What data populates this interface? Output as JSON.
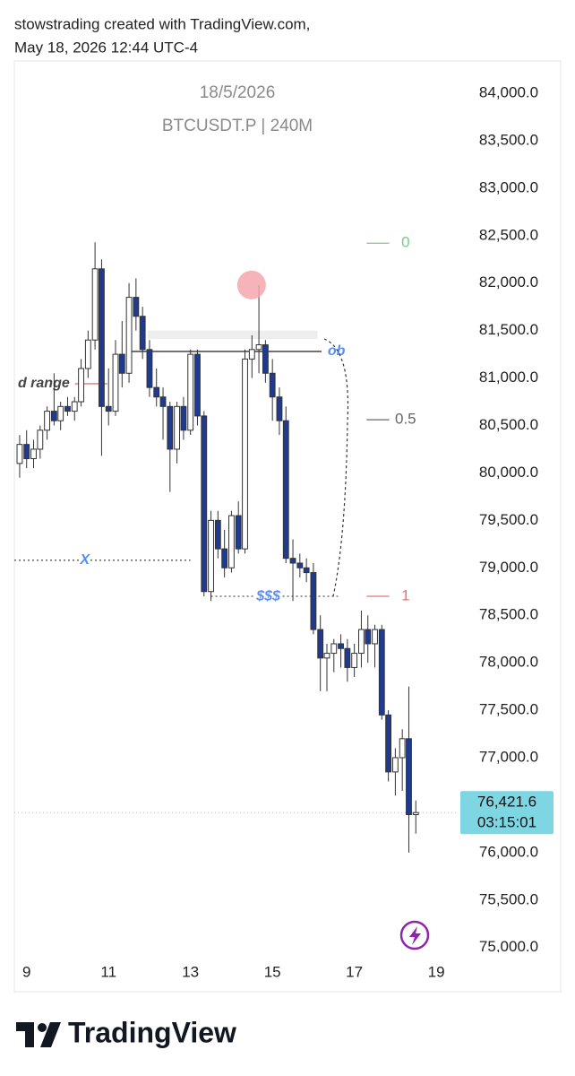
{
  "header": {
    "line1": "stowstrading created with TradingView.com,",
    "line2": "May 18, 2026 12:44 UTC-4"
  },
  "footer": {
    "brand": "TradingView"
  },
  "chart_data": {
    "type": "candlestick",
    "title": "18/5/2026",
    "subtitle": "BTCUSDT.P | 240M",
    "x": [
      8.83,
      9.0,
      9.17,
      9.33,
      9.5,
      9.67,
      9.83,
      10.0,
      10.17,
      10.33,
      10.5,
      10.67,
      10.83,
      11.0,
      11.17,
      11.33,
      11.5,
      11.67,
      11.83,
      12.0,
      12.17,
      12.33,
      12.5,
      12.67,
      12.83,
      13.0,
      13.17,
      13.33,
      13.5,
      13.67,
      13.83,
      14.0,
      14.17,
      14.33,
      14.5,
      14.67,
      14.83,
      15.0,
      15.17,
      15.33,
      15.5,
      15.67,
      15.83,
      16.0,
      16.17,
      16.33,
      16.5,
      16.67,
      16.83,
      17.0,
      17.17,
      17.33,
      17.5,
      17.67,
      17.83,
      18.0,
      18.17,
      18.33,
      18.5
    ],
    "open": [
      80100,
      80300,
      80150,
      80250,
      80450,
      80650,
      80550,
      80700,
      80650,
      80750,
      81100,
      81400,
      82150,
      80700,
      80650,
      81250,
      81050,
      81850,
      81650,
      81300,
      80900,
      80800,
      80700,
      80250,
      80700,
      80450,
      81250,
      80600,
      78750,
      79500,
      79200,
      79000,
      79550,
      79200,
      81200,
      81300,
      81350,
      81050,
      80800,
      80550,
      79100,
      79050,
      79000,
      78950,
      78350,
      78050,
      78100,
      78200,
      78150,
      77950,
      78100,
      78350,
      78200,
      78350,
      77450,
      76850,
      77000,
      77200,
      76400
    ],
    "high": [
      80400,
      80450,
      80350,
      80500,
      80700,
      81050,
      80750,
      80800,
      80800,
      81200,
      81500,
      82430,
      82250,
      81100,
      81400,
      81600,
      82000,
      82050,
      81750,
      81400,
      81100,
      80900,
      80750,
      80750,
      80800,
      81300,
      81300,
      80650,
      79600,
      79600,
      79400,
      79600,
      79700,
      81300,
      81450,
      81980,
      81400,
      81200,
      80900,
      80700,
      79300,
      79150,
      79100,
      79050,
      78500,
      78200,
      78250,
      78300,
      78250,
      78200,
      78550,
      78500,
      78400,
      78400,
      77500,
      77100,
      77300,
      77750,
      76550
    ],
    "low": [
      79950,
      80050,
      80050,
      80150,
      80350,
      80500,
      80450,
      80600,
      80550,
      80700,
      81000,
      81300,
      80180,
      80500,
      80600,
      80900,
      80950,
      81500,
      81200,
      80800,
      80700,
      80350,
      79800,
      80100,
      80350,
      80400,
      80500,
      78700,
      78650,
      79100,
      78900,
      78950,
      79150,
      79150,
      81000,
      81050,
      80950,
      80550,
      80400,
      79050,
      78650,
      78900,
      78850,
      78300,
      77700,
      77700,
      77900,
      77950,
      77800,
      77850,
      77950,
      78000,
      77950,
      77400,
      76750,
      76600,
      76650,
      76000,
      76200
    ],
    "close": [
      80300,
      80150,
      80250,
      80450,
      80650,
      80550,
      80700,
      80650,
      80750,
      81100,
      81400,
      82150,
      80700,
      80650,
      81250,
      81050,
      81850,
      81650,
      81300,
      80900,
      80800,
      80700,
      80250,
      80700,
      80450,
      81250,
      80600,
      78750,
      79500,
      79200,
      79000,
      79550,
      79200,
      81200,
      81300,
      81350,
      81050,
      80800,
      80550,
      79100,
      79050,
      79000,
      78950,
      78350,
      78050,
      78100,
      78200,
      78150,
      77950,
      78100,
      78350,
      78200,
      78350,
      77450,
      76850,
      77000,
      77200,
      76400,
      76421.6
    ],
    "up_color": "#ffffff",
    "down_color": "#1f3a8f",
    "edge_color": "#333333",
    "xlim": [
      8.7,
      19.5
    ],
    "xticks": [
      9,
      11,
      13,
      15,
      17,
      19
    ],
    "ylim": [
      74950,
      84340
    ],
    "yticks": [
      {
        "value": 75000,
        "label": "75,000.0"
      },
      {
        "value": 75500,
        "label": "75,500.0"
      },
      {
        "value": 76000,
        "label": "76,000.0"
      },
      {
        "value": 76500,
        "label": "76,500.0"
      },
      {
        "value": 77000,
        "label": "77,000.0"
      },
      {
        "value": 77500,
        "label": "77,500.0"
      },
      {
        "value": 78000,
        "label": "78,000.0"
      },
      {
        "value": 78500,
        "label": "78,500.0"
      },
      {
        "value": 79000,
        "label": "79,000.0"
      },
      {
        "value": 79500,
        "label": "79,500.0"
      },
      {
        "value": 80000,
        "label": "80,000.0"
      },
      {
        "value": 80500,
        "label": "80,500.0"
      },
      {
        "value": 81000,
        "label": "81,000.0"
      },
      {
        "value": 81500,
        "label": "81,500.0"
      },
      {
        "value": 82000,
        "label": "82,000.0"
      },
      {
        "value": 82500,
        "label": "82,500.0"
      },
      {
        "value": 83000,
        "label": "83,000.0"
      },
      {
        "value": 83500,
        "label": "83,500.0"
      },
      {
        "value": 84000,
        "label": "84,000.0"
      }
    ],
    "last_price": {
      "value": 76421.6,
      "label": "76,421.6",
      "countdown": "03:15:01",
      "color": "#7fd6e3"
    },
    "annotations": [
      {
        "kind": "zone",
        "price": [
          81410,
          81500
        ],
        "x": [
          11.95,
          16.1
        ],
        "color": "#eeeeee"
      },
      {
        "kind": "level",
        "text": "ob",
        "price": 81280,
        "x": [
          11.5,
          16.2
        ],
        "text_x": 16.35,
        "color": "#333333",
        "text_color": "#5b8def",
        "dash": false,
        "anchor": "start"
      },
      {
        "kind": "level",
        "text": "d range",
        "price": 80940,
        "x": [
          10.18,
          10.97
        ],
        "text_x": 10.05,
        "color": "#e57373",
        "text_color": "#444444",
        "dash": false,
        "anchor": "end"
      },
      {
        "kind": "level",
        "text": "X",
        "price": 79080,
        "x": [
          8.7,
          13.0
        ],
        "text_x": 10.42,
        "color": "#555555",
        "text_color": "#5b8def",
        "dash": true,
        "anchor": "middle"
      },
      {
        "kind": "level",
        "text": "$$$",
        "price": 78700,
        "x": [
          13.5,
          16.6
        ],
        "text_x": 14.9,
        "color": "#555555",
        "text_color": "#5b8def",
        "dash": true,
        "anchor": "middle"
      },
      {
        "kind": "marker",
        "price": 81980,
        "x": 14.49,
        "color": "#f4a6ad"
      }
    ],
    "fib": {
      "levels": [
        0,
        0.5,
        1
      ],
      "prices": [
        82420,
        80560,
        78700
      ],
      "colors": [
        "#7bc98b",
        "#666666",
        "#e57373"
      ],
      "x": [
        17.3,
        17.85
      ],
      "text_x": 18.25
    }
  }
}
